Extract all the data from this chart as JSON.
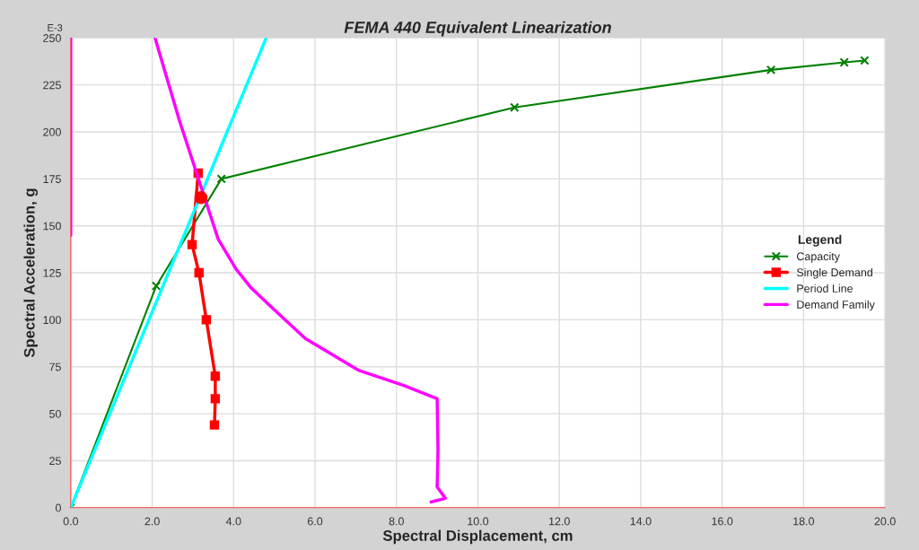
{
  "chart_data": {
    "type": "line",
    "title": "FEMA 440 Equivalent Linearization",
    "xlabel": "Spectral Displacement, cm",
    "ylabel": "Spectral Acceleration, g",
    "legend_title": "Legend",
    "annotations": [
      "E-3"
    ],
    "xlim": [
      0,
      20
    ],
    "ylim": [
      0,
      250
    ],
    "xticks": [
      {
        "value": 0,
        "label": "0.0"
      },
      {
        "value": 2,
        "label": "2.0"
      },
      {
        "value": 4,
        "label": "4.0"
      },
      {
        "value": 6,
        "label": "6.0"
      },
      {
        "value": 8,
        "label": "8.0"
      },
      {
        "value": 10,
        "label": "10.0"
      },
      {
        "value": 12,
        "label": "12.0"
      },
      {
        "value": 14,
        "label": "14.0"
      },
      {
        "value": 16,
        "label": "16.0"
      },
      {
        "value": 18,
        "label": "18.0"
      },
      {
        "value": 20,
        "label": "20.0"
      }
    ],
    "yticks": [
      0,
      25,
      50,
      75,
      100,
      125,
      150,
      175,
      200,
      225,
      250
    ],
    "grid": true,
    "legend": "center right",
    "series": [
      {
        "name": "Capacity",
        "color": "#008000",
        "marker": "cross",
        "x": [
          0,
          2.1,
          3.7,
          10.9,
          17.2,
          19.0,
          19.5
        ],
        "values": [
          0,
          118,
          175,
          213,
          233,
          237,
          238
        ]
      },
      {
        "name": "Single Demand",
        "color": "#ff0000",
        "marker": "square",
        "x": [
          3.13,
          2.98,
          3.15,
          3.33,
          3.55,
          3.55,
          3.53
        ],
        "values": [
          178,
          140,
          125,
          100,
          70,
          58,
          44
        ]
      },
      {
        "name": "Period Line",
        "color": "#00ffff",
        "marker": "none",
        "x": [
          0,
          4.8
        ],
        "values": [
          0,
          250
        ]
      },
      {
        "name": "Demand Family",
        "color": "#ff00ff",
        "marker": "none",
        "x": [
          0,
          0,
          null,
          2.07,
          2.67,
          3.62,
          4.06,
          4.43,
          4.87,
          5.76,
          7.08,
          8.18,
          9.0,
          9.02,
          9.0,
          9.2,
          8.85
        ],
        "values": [
          145,
          250,
          null,
          250,
          206,
          143,
          127,
          117,
          108,
          90,
          73,
          65,
          58,
          31,
          11,
          5,
          3
        ]
      },
      {
        "type": "scatter",
        "color": "#ff0000",
        "marker": "circle",
        "x": [
          3.2
        ],
        "values": [
          165
        ]
      }
    ]
  }
}
